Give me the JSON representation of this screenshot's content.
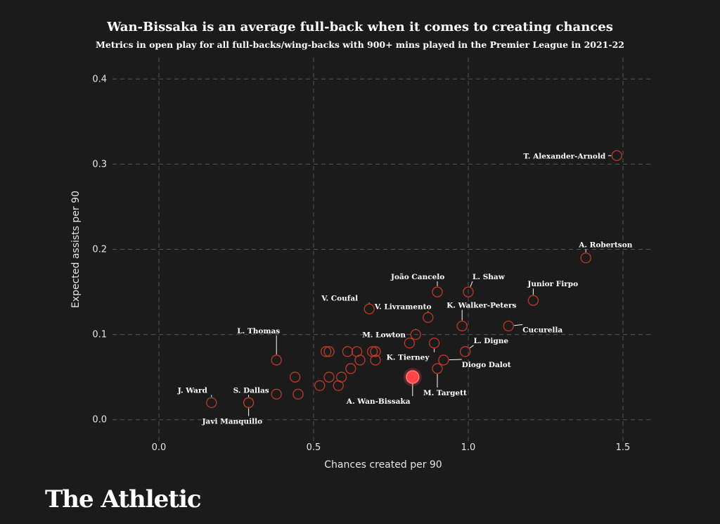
{
  "chart_data": {
    "type": "scatter",
    "title": "Wan-Bissaka is an average full-back when it comes to creating chances",
    "subtitle": "Metrics in open play for all full-backs/wing-backs with 900+ mins played in the Premier League in 2021-22",
    "xlabel": "Chances created per 90",
    "ylabel": "Expected assists per 90",
    "xlim": [
      -0.15,
      1.6
    ],
    "ylim": [
      -0.025,
      0.425
    ],
    "xticks": [
      0.0,
      0.5,
      1.0,
      1.5
    ],
    "xtick_labels": [
      "0.0",
      "0.5",
      "1.0",
      "1.5"
    ],
    "yticks": [
      0.0,
      0.1,
      0.2,
      0.3,
      0.4
    ],
    "ytick_labels": [
      "0.0",
      "0.1",
      "0.2",
      "0.3",
      "0.4"
    ],
    "grid": true,
    "highlight_color": "#ff4545",
    "marker_color": "#c0392b",
    "points": [
      {
        "x": 1.48,
        "y": 0.31,
        "label": "T. Alexander-Arnold"
      },
      {
        "x": 1.38,
        "y": 0.19,
        "label": "A. Robertson"
      },
      {
        "x": 1.21,
        "y": 0.14,
        "label": "Junior Firpo"
      },
      {
        "x": 1.13,
        "y": 0.11,
        "label": "Cucurella"
      },
      {
        "x": 1.0,
        "y": 0.15,
        "label": "L. Shaw"
      },
      {
        "x": 0.9,
        "y": 0.15,
        "label": "João Cancelo"
      },
      {
        "x": 0.98,
        "y": 0.11,
        "label": "K. Walker-Peters"
      },
      {
        "x": 0.68,
        "y": 0.13,
        "label": "V. Coufal"
      },
      {
        "x": 0.87,
        "y": 0.12,
        "label": "V. Livramento"
      },
      {
        "x": 0.83,
        "y": 0.1,
        "label": "M. Lowton"
      },
      {
        "x": 0.99,
        "y": 0.08,
        "label": "L. Digne"
      },
      {
        "x": 0.89,
        "y": 0.09,
        "label": "K. Tierney"
      },
      {
        "x": 0.92,
        "y": 0.07,
        "label": "Diogo Dalot"
      },
      {
        "x": 0.9,
        "y": 0.06,
        "label": "M. Targett"
      },
      {
        "x": 0.82,
        "y": 0.05,
        "label": "A. Wan-Bissaka",
        "highlight": true
      },
      {
        "x": 0.38,
        "y": 0.07,
        "label": "L. Thomas"
      },
      {
        "x": 0.17,
        "y": 0.02,
        "label": "J. Ward"
      },
      {
        "x": 0.29,
        "y": 0.02,
        "label": "S. Dallas"
      },
      {
        "x": 0.29,
        "y": 0.02,
        "label": "Javi Manquillo"
      },
      {
        "x": 0.81,
        "y": 0.09
      },
      {
        "x": 0.38,
        "y": 0.03
      },
      {
        "x": 0.44,
        "y": 0.05
      },
      {
        "x": 0.45,
        "y": 0.03
      },
      {
        "x": 0.52,
        "y": 0.04
      },
      {
        "x": 0.54,
        "y": 0.08
      },
      {
        "x": 0.55,
        "y": 0.08
      },
      {
        "x": 0.55,
        "y": 0.05
      },
      {
        "x": 0.58,
        "y": 0.04
      },
      {
        "x": 0.59,
        "y": 0.05
      },
      {
        "x": 0.61,
        "y": 0.08
      },
      {
        "x": 0.62,
        "y": 0.06
      },
      {
        "x": 0.64,
        "y": 0.08
      },
      {
        "x": 0.65,
        "y": 0.07
      },
      {
        "x": 0.69,
        "y": 0.08
      },
      {
        "x": 0.7,
        "y": 0.08
      },
      {
        "x": 0.7,
        "y": 0.07
      }
    ]
  },
  "branding": {
    "logo_text": "The Athletic"
  }
}
